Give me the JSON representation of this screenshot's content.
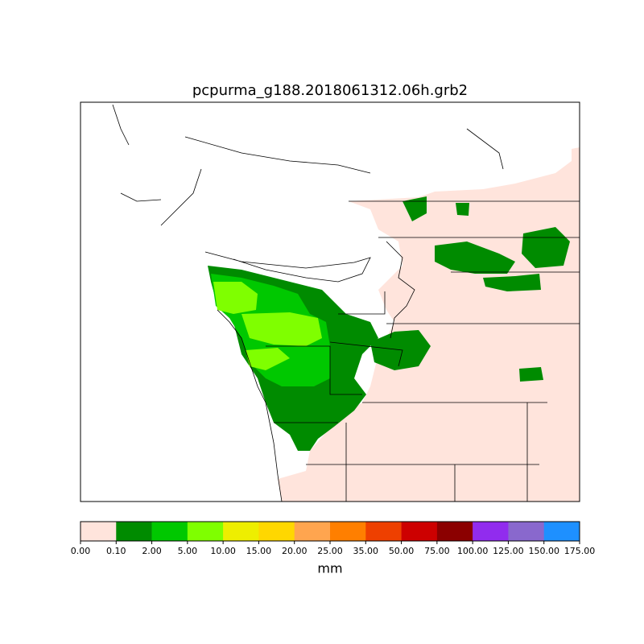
{
  "title": "pcpurma_g188.2018061312.06h.grb2",
  "colorbar": {
    "label": "mm",
    "ticks": [
      {
        "value": 0,
        "label": "0.00"
      },
      {
        "value": 0.1,
        "label": "0.10"
      },
      {
        "value": 2,
        "label": "2.00"
      },
      {
        "value": 5,
        "label": "5.00"
      },
      {
        "value": 10,
        "label": "10.00"
      },
      {
        "value": 15,
        "label": "15.00"
      },
      {
        "value": 20,
        "label": "20.00"
      },
      {
        "value": 25,
        "label": "25.00"
      },
      {
        "value": 35,
        "label": "35.00"
      },
      {
        "value": 50,
        "label": "50.00"
      },
      {
        "value": 75,
        "label": "75.00"
      },
      {
        "value": 100,
        "label": "100.00"
      },
      {
        "value": 125,
        "label": "125.00"
      },
      {
        "value": 150,
        "label": "150.00"
      },
      {
        "value": 175,
        "label": "175.00"
      }
    ],
    "colors": [
      "#ffe4dc",
      "#008b00",
      "#00c800",
      "#7fff00",
      "#eeee00",
      "#ffd700",
      "#ffa54f",
      "#ff7f00",
      "#ee4000",
      "#cd0000",
      "#8b0000",
      "#912cee",
      "#8968cd",
      "#1e90ff"
    ]
  }
}
